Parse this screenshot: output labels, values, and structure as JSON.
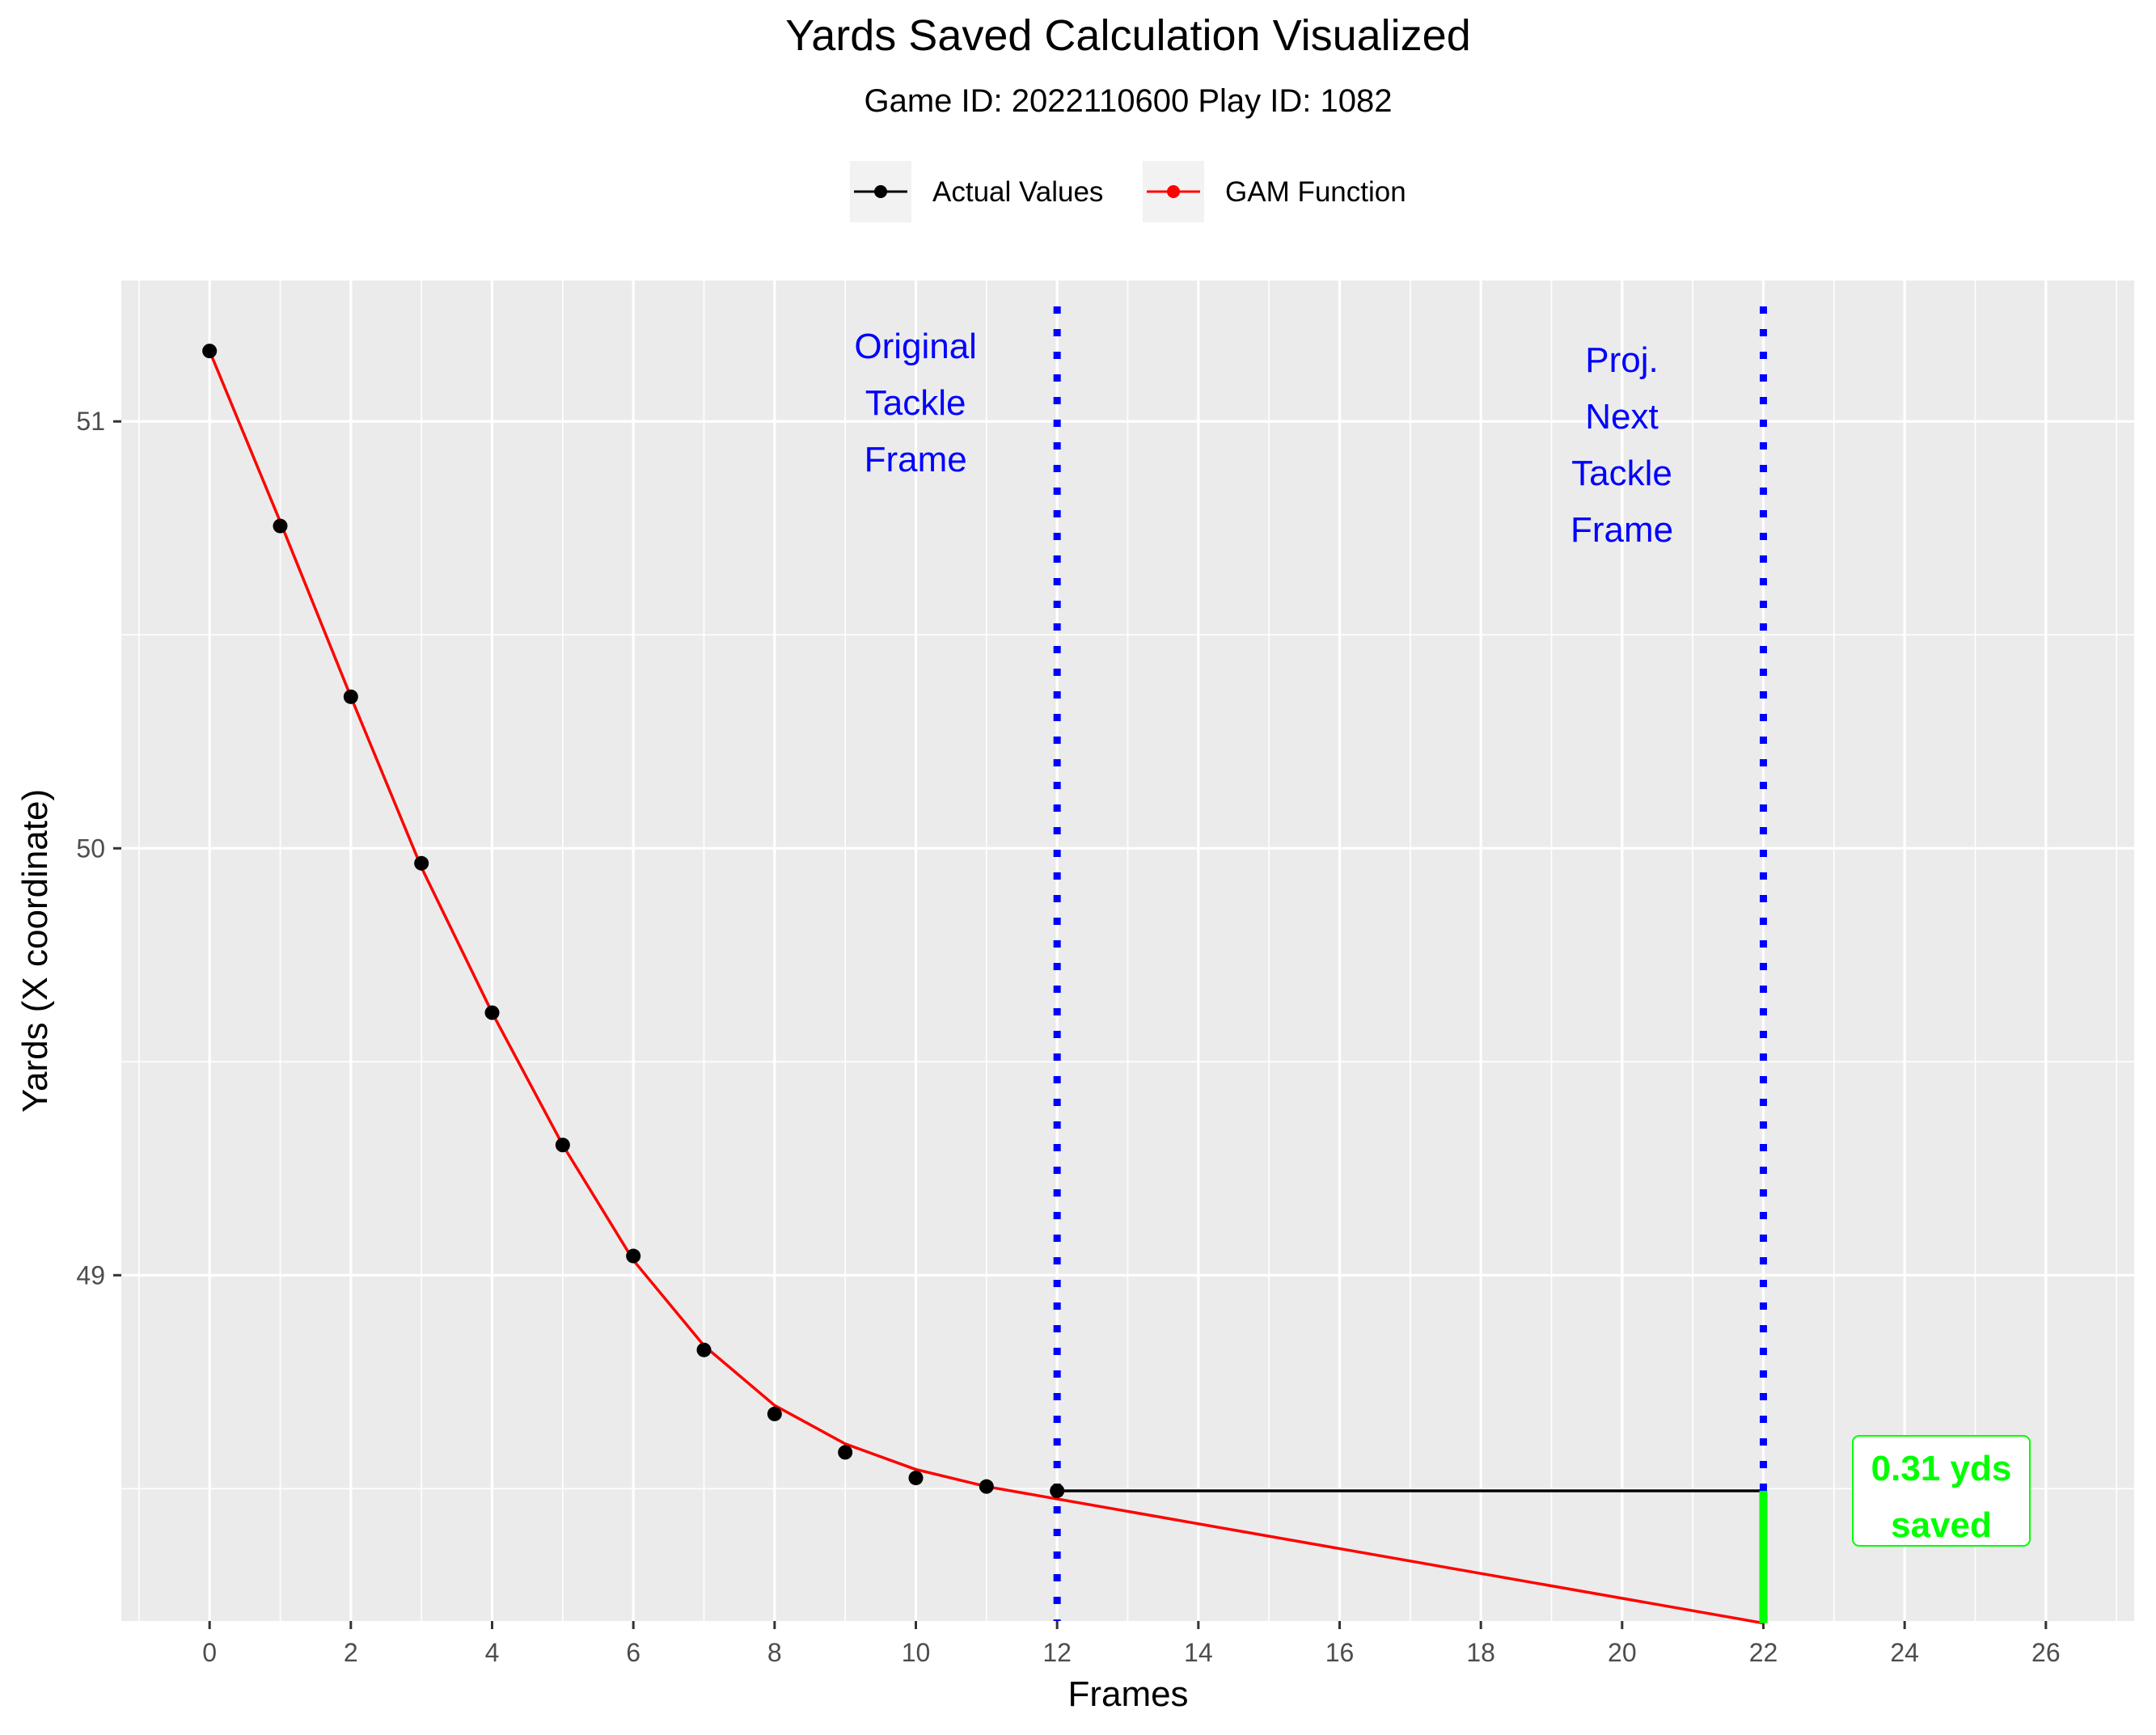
{
  "chart_data": {
    "type": "line",
    "title": "Yards Saved Calculation Visualized",
    "subtitle": "Game ID: 2022110600 Play ID: 1082",
    "xlabel": "Frames",
    "ylabel": "Yards (X coordinate)",
    "xlim": [
      -1.25,
      27.25
    ],
    "ylim": [
      48.19,
      51.33
    ],
    "x_ticks": [
      0,
      2,
      4,
      6,
      8,
      10,
      12,
      14,
      16,
      18,
      20,
      22,
      24,
      26
    ],
    "y_ticks": [
      49,
      50,
      51
    ],
    "grid": true,
    "legend_position": "top",
    "legend": [
      {
        "name": "Actual Values",
        "color": "#000000"
      },
      {
        "name": "GAM Function",
        "color": "#ff0000"
      }
    ],
    "series": [
      {
        "name": "Actual Values",
        "color": "#000000",
        "points": [
          {
            "x": 0,
            "y": 51.165
          },
          {
            "x": 1,
            "y": 50.755
          },
          {
            "x": 2,
            "y": 50.355
          },
          {
            "x": 3,
            "y": 49.965
          },
          {
            "x": 4,
            "y": 49.615
          },
          {
            "x": 5,
            "y": 49.305
          },
          {
            "x": 6,
            "y": 49.045
          },
          {
            "x": 7,
            "y": 48.825
          },
          {
            "x": 8,
            "y": 48.675
          },
          {
            "x": 9,
            "y": 48.585
          },
          {
            "x": 10,
            "y": 48.525
          },
          {
            "x": 11,
            "y": 48.505
          },
          {
            "x": 12,
            "y": 48.495
          }
        ],
        "projection": {
          "from_x": 12,
          "to_x": 22,
          "y": 48.495
        }
      },
      {
        "name": "GAM Function",
        "color": "#ff0000",
        "points": [
          {
            "x": 0,
            "y": 51.165
          },
          {
            "x": 1,
            "y": 50.765
          },
          {
            "x": 2,
            "y": 50.355
          },
          {
            "x": 3,
            "y": 49.955
          },
          {
            "x": 4,
            "y": 49.615
          },
          {
            "x": 5,
            "y": 49.305
          },
          {
            "x": 6,
            "y": 49.035
          },
          {
            "x": 7,
            "y": 48.835
          },
          {
            "x": 8,
            "y": 48.695
          },
          {
            "x": 9,
            "y": 48.605
          },
          {
            "x": 10,
            "y": 48.545
          },
          {
            "x": 11,
            "y": 48.505
          },
          {
            "x": 22,
            "y": 48.185
          }
        ]
      }
    ],
    "vlines": [
      {
        "x": 12,
        "color": "#0000ff",
        "label_lines": [
          "Original",
          "Tackle",
          "Frame"
        ]
      },
      {
        "x": 22,
        "color": "#0000ff",
        "label_lines": [
          "Proj.",
          "Next",
          "Tackle",
          "Frame"
        ]
      }
    ],
    "saved": {
      "x": 22,
      "y_top": 48.495,
      "y_bottom": 48.185,
      "color": "#00ff00",
      "label_lines": [
        "0.31 yds",
        "saved"
      ]
    }
  }
}
